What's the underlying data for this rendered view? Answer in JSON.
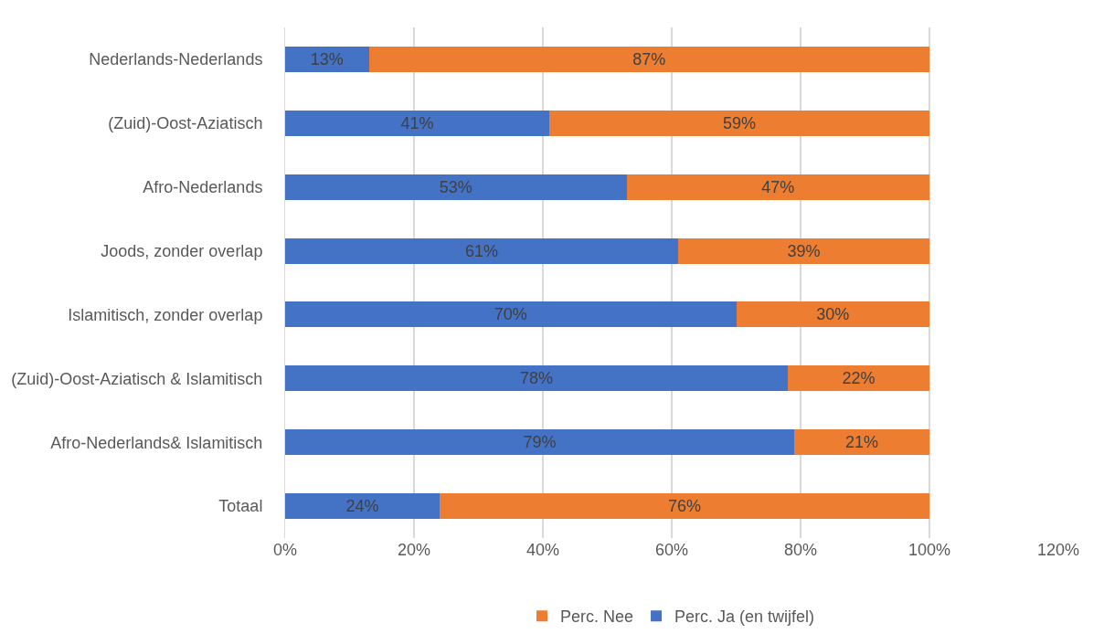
{
  "chart_data": {
    "type": "bar",
    "orientation": "horizontal",
    "stacked": true,
    "categories": [
      "Nederlands-Nederlands",
      "(Zuid)-Oost-Aziatisch",
      "Afro-Nederlands",
      "Joods, zonder overlap",
      "Islamitisch, zonder overlap",
      "(Zuid)-Oost-Aziatisch & Islamitisch",
      "Afro-Nederlands& Islamitisch",
      "Totaal"
    ],
    "series": [
      {
        "name": "Perc. Ja (en twijfel)",
        "color": "#4472c4",
        "values": [
          13,
          41,
          53,
          61,
          70,
          78,
          79,
          24
        ],
        "value_labels": [
          "13%",
          "41%",
          "53%",
          "61%",
          "70%",
          "78%",
          "79%",
          "24%"
        ]
      },
      {
        "name": "Perc. Nee",
        "color": "#ed7d31",
        "values": [
          87,
          59,
          47,
          39,
          30,
          22,
          21,
          76
        ],
        "value_labels": [
          "87%",
          "59%",
          "47%",
          "39%",
          "30%",
          "22%",
          "21%",
          "76%"
        ]
      }
    ],
    "xlim": [
      0,
      120
    ],
    "xticks": [
      {
        "value": 0,
        "label": "0%"
      },
      {
        "value": 20,
        "label": "20%"
      },
      {
        "value": 40,
        "label": "40%"
      },
      {
        "value": 60,
        "label": "60%"
      },
      {
        "value": 80,
        "label": "80%"
      },
      {
        "value": 100,
        "label": "100%"
      },
      {
        "value": 120,
        "label": "120%"
      }
    ],
    "grid": "x",
    "legend": "bottom"
  }
}
